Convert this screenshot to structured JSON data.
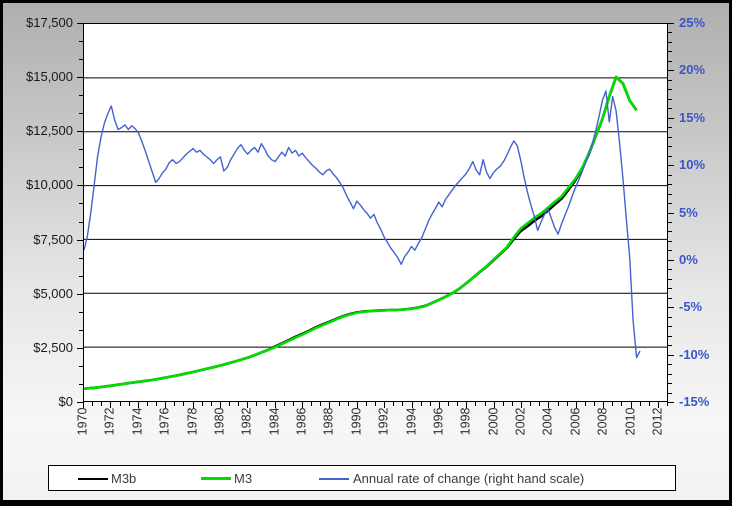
{
  "chart_data": {
    "type": "line",
    "title": "",
    "x_axis": {
      "range_years": [
        1970,
        2012.73
      ],
      "tick_labels": [
        "1970",
        "1972",
        "1974",
        "1976",
        "1978",
        "1980",
        "1982",
        "1984",
        "1986",
        "1988",
        "1990",
        "1992",
        "1994",
        "1996",
        "1998",
        "2000",
        "2002",
        "2004",
        "2006",
        "2008",
        "2010",
        "2012"
      ],
      "label_rotation_deg": 90
    },
    "y_axis_left": {
      "range": [
        0,
        17500
      ],
      "gridline_step": 2500,
      "tick_labels": [
        "$17,500",
        "$15,000",
        "$12,500",
        "$10,000",
        "$7,500",
        "$5,000",
        "$2,500",
        "$0"
      ],
      "label_color": "#1a1a1a",
      "grid": true
    },
    "y_axis_right": {
      "range": [
        -15,
        25
      ],
      "step": 5,
      "tick_labels": [
        "25%",
        "20%",
        "15%",
        "10%",
        "5%",
        "0%",
        "-5%",
        "-10%",
        "-15%"
      ],
      "label_color": "#3a56c8"
    },
    "legend": {
      "position": "bottom"
    },
    "series": [
      {
        "name": "M3b",
        "color": "#000000",
        "axis": "left",
        "start": 1970,
        "step": 0.5,
        "values": [
          570,
          598,
          628,
          668,
          710,
          758,
          805,
          850,
          893,
          933,
          975,
          1028,
          1090,
          1150,
          1212,
          1278,
          1348,
          1420,
          1498,
          1572,
          1650,
          1735,
          1822,
          1918,
          2012,
          2122,
          2252,
          2375,
          2530,
          2672,
          2828,
          2978,
          3112,
          3262,
          3420,
          3558,
          3680,
          3815,
          3942,
          4038,
          4112,
          4155,
          4180,
          4198,
          4212,
          4222,
          4230,
          4252,
          4285,
          4340,
          4415,
          4550,
          4692,
          4840,
          5010,
          5210,
          5455,
          5720,
          5985,
          6235,
          6525,
          6820,
          7115,
          7520,
          7880,
          8110,
          8360,
          8570,
          8840,
          9120,
          9390,
          9800,
          10230,
          10760,
          11470,
          12280,
          13090,
          14140,
          15040,
          14740,
          13945,
          13495
        ]
      },
      {
        "name": "M3",
        "color": "#00dd00",
        "axis": "left",
        "start": 1970,
        "step": 0.5,
        "values": [
          570,
          598,
          628,
          668,
          710,
          758,
          805,
          850,
          893,
          933,
          975,
          1028,
          1090,
          1150,
          1212,
          1278,
          1348,
          1420,
          1498,
          1572,
          1650,
          1735,
          1822,
          1918,
          2012,
          2122,
          2250,
          2372,
          2500,
          2640,
          2795,
          2945,
          3080,
          3230,
          3388,
          3528,
          3652,
          3790,
          3920,
          4018,
          4095,
          4140,
          4168,
          4188,
          4205,
          4218,
          4228,
          4248,
          4278,
          4330,
          4400,
          4538,
          4680,
          4828,
          5000,
          5205,
          5460,
          5730,
          6000,
          6255,
          6550,
          6850,
          7150,
          7600,
          8000,
          8250,
          8500,
          8705,
          8970,
          9245,
          9500,
          9895,
          10300,
          10805,
          11500,
          12295,
          13100,
          14150,
          15050,
          14750,
          13950,
          13500
        ]
      },
      {
        "name": "Annual rate of change (right hand scale)",
        "color": "#4263cf",
        "axis": "right",
        "start": 1970,
        "step": 0.25,
        "values": [
          1.0,
          2.5,
          5.0,
          8.0,
          11.0,
          13.0,
          14.5,
          15.5,
          16.3,
          14.8,
          13.8,
          14.0,
          14.3,
          13.8,
          14.2,
          13.9,
          13.4,
          12.5,
          11.5,
          10.4,
          9.3,
          8.2,
          8.6,
          9.2,
          9.6,
          10.3,
          10.6,
          10.2,
          10.4,
          10.8,
          11.2,
          11.5,
          11.8,
          11.4,
          11.6,
          11.2,
          10.9,
          10.6,
          10.2,
          10.6,
          10.9,
          9.4,
          9.8,
          10.6,
          11.2,
          11.8,
          12.2,
          11.6,
          11.2,
          11.6,
          11.9,
          11.4,
          12.3,
          11.7,
          11.0,
          10.6,
          10.4,
          10.9,
          11.4,
          11.0,
          11.9,
          11.3,
          11.6,
          11.0,
          11.3,
          10.8,
          10.4,
          10.0,
          9.7,
          9.3,
          9.0,
          9.4,
          9.6,
          9.1,
          8.7,
          8.2,
          7.6,
          6.8,
          6.1,
          5.4,
          6.2,
          5.8,
          5.3,
          4.9,
          4.4,
          4.8,
          3.9,
          3.2,
          2.4,
          1.8,
          1.2,
          0.7,
          0.2,
          -0.5,
          0.3,
          0.8,
          1.4,
          1.0,
          1.7,
          2.3,
          3.2,
          4.1,
          4.8,
          5.4,
          6.1,
          5.6,
          6.4,
          6.9,
          7.4,
          7.9,
          8.3,
          8.7,
          9.1,
          9.7,
          10.4,
          9.5,
          9.0,
          10.6,
          9.3,
          8.6,
          9.2,
          9.6,
          9.9,
          10.4,
          11.1,
          11.9,
          12.6,
          12.1,
          10.6,
          8.8,
          7.2,
          5.8,
          4.6,
          3.1,
          4.0,
          4.8,
          5.4,
          4.4,
          3.4,
          2.7,
          3.8,
          4.7,
          5.6,
          6.6,
          7.6,
          8.4,
          9.3,
          10.2,
          11.2,
          12.3,
          13.6,
          15.2,
          16.9,
          17.9,
          14.6,
          17.3,
          15.8,
          12.4,
          8.6,
          4.3,
          0.2,
          -6.5,
          -10.4,
          -9.7
        ]
      }
    ]
  }
}
